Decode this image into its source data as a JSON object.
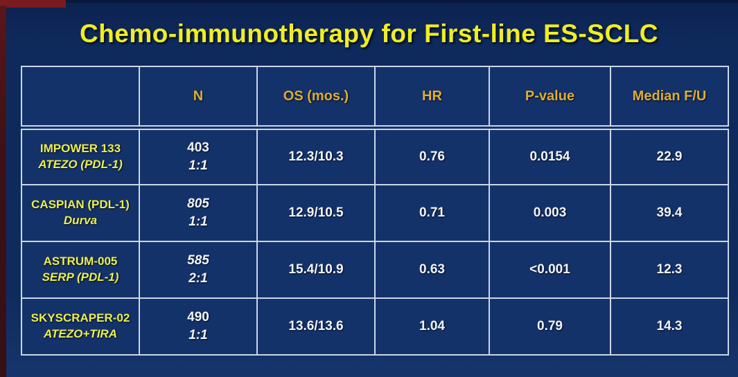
{
  "slide": {
    "title": "Chemo-immunotherapy for First-line ES-SCLC"
  },
  "colors": {
    "background_navy": "#0f2b5e",
    "cell_navy": "#14326a",
    "border_white": "#ccd7e9",
    "title_yellow": "#f0ee21",
    "header_gold": "#dfac33",
    "study_yellow": "#ecef4d",
    "value_white": "#f2f4f8",
    "edge_maroon": "#58161b"
  },
  "table": {
    "columns": [
      "",
      "N",
      "OS (mos.)",
      "HR",
      "P-value",
      "Median F/U"
    ],
    "rows": [
      {
        "study": "IMPOWER 133",
        "subtitle": "ATEZO (PDL-1)",
        "n": "403",
        "ratio": "1:1",
        "os": "12.3/10.3",
        "hr": "0.76",
        "p_value": "0.0154",
        "median_fu": "22.9"
      },
      {
        "study": "CASPIAN (PDL-1)",
        "subtitle": "Durva",
        "n": "805",
        "ratio": "1:1",
        "os": "12.9/10.5",
        "hr": "0.71",
        "p_value": "0.003",
        "median_fu": "39.4"
      },
      {
        "study": "ASTRUM-005",
        "subtitle": "SERP (PDL-1)",
        "n": "585",
        "ratio": "2:1",
        "os": "15.4/10.9",
        "hr": "0.63",
        "p_value": "<0.001",
        "median_fu": "12.3"
      },
      {
        "study": "SKYSCRAPER-02",
        "subtitle": "ATEZO+TIRA",
        "n": "490",
        "ratio": "1:1",
        "os": "13.6/13.6",
        "hr": "1.04",
        "p_value": "0.79",
        "median_fu": "14.3"
      }
    ]
  }
}
